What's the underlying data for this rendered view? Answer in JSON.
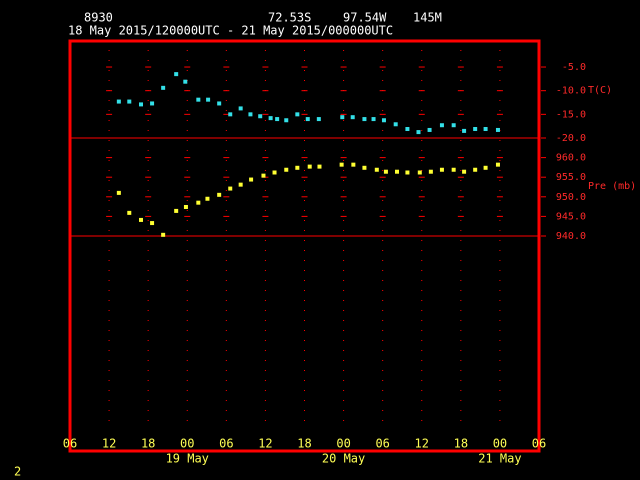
{
  "header": {
    "station": "8930",
    "latitude": "72.53S",
    "longitude": "97.54W",
    "elevation": "145M",
    "period": "18 May 2015/120000UTC - 21 May 2015/000000UTC"
  },
  "x_axis": {
    "xlim": [
      0,
      72
    ],
    "xticks": [
      {
        "value": 0,
        "label": "06"
      },
      {
        "value": 6,
        "label": "12"
      },
      {
        "value": 12,
        "label": "18"
      },
      {
        "value": 18,
        "label": "00"
      },
      {
        "value": 24,
        "label": "06"
      },
      {
        "value": 30,
        "label": "12"
      },
      {
        "value": 36,
        "label": "18"
      },
      {
        "value": 42,
        "label": "00"
      },
      {
        "value": 48,
        "label": "06"
      },
      {
        "value": 54,
        "label": "12"
      },
      {
        "value": 60,
        "label": "18"
      },
      {
        "value": 66,
        "label": "00"
      },
      {
        "value": 72,
        "label": "06"
      }
    ],
    "dates": [
      {
        "value": 18,
        "label": "19 May"
      },
      {
        "value": 42,
        "label": "20 May"
      },
      {
        "value": 66,
        "label": "21 May"
      }
    ]
  },
  "chart_data": [
    {
      "type": "scatter",
      "y_label": "T(C)",
      "color": "#33e0e8",
      "ylim": [
        -20,
        0.5
      ],
      "yticks": [
        {
          "value": -5,
          "label": "-5.0"
        },
        {
          "value": -10,
          "label": "-10.0"
        },
        {
          "value": -15,
          "label": "-15.0"
        },
        {
          "value": -20,
          "label": "-20.0"
        }
      ],
      "x": [
        7.5,
        9.1,
        10.9,
        12.6,
        14.3,
        16.3,
        17.7,
        19.7,
        21.2,
        22.9,
        24.6,
        26.2,
        27.7,
        29.2,
        30.8,
        31.8,
        33.2,
        34.9,
        36.5,
        38.2,
        41.8,
        43.4,
        45.2,
        46.6,
        48.2,
        50,
        51.8,
        53.5,
        55.2,
        57.1,
        58.9,
        60.5,
        62.2,
        63.8,
        65.7
      ],
      "values": [
        -12.3,
        -12.3,
        -12.9,
        -12.7,
        -9.4,
        -6.5,
        -8.1,
        -11.9,
        -11.9,
        -12.7,
        -15,
        -13.75,
        -15,
        -15.4,
        -15.8,
        -16,
        -16.25,
        -15,
        -16,
        -16,
        -15.6,
        -15.6,
        -16,
        -16,
        -16.25,
        -17.1,
        -18.1,
        -18.75,
        -18.3,
        -17.3,
        -17.3,
        -18.5,
        -18.1,
        -18.1,
        -18.3
      ]
    },
    {
      "type": "scatter",
      "y_label": "Pre (mb)",
      "color": "#ffff33",
      "ylim": [
        940,
        965
      ],
      "yticks": [
        {
          "value": 960,
          "label": "960.0"
        },
        {
          "value": 955,
          "label": "955.0"
        },
        {
          "value": 950,
          "label": "950.0"
        },
        {
          "value": 945,
          "label": "945.0"
        },
        {
          "value": 940,
          "label": "940.0"
        }
      ],
      "x": [
        7.5,
        9.1,
        10.9,
        12.6,
        14.3,
        16.3,
        17.8,
        19.7,
        21.1,
        22.9,
        24.6,
        26.2,
        27.8,
        29.7,
        31.4,
        33.2,
        34.9,
        36.8,
        38.3,
        41.7,
        43.5,
        45.2,
        47.1,
        48.5,
        50.2,
        51.8,
        53.7,
        55.4,
        57.1,
        58.9,
        60.5,
        62.2,
        63.8,
        65.7
      ],
      "values": [
        951,
        945.9,
        944.1,
        943.3,
        940.3,
        946.4,
        947.4,
        948.5,
        949.5,
        950.5,
        952.1,
        953.1,
        954.4,
        955.4,
        956.2,
        956.9,
        957.4,
        957.7,
        957.7,
        958.2,
        958.2,
        957.4,
        956.9,
        956.4,
        956.4,
        956.2,
        956.2,
        956.4,
        956.9,
        956.9,
        956.4,
        956.9,
        957.4,
        958.2
      ]
    }
  ],
  "page_number": "2"
}
